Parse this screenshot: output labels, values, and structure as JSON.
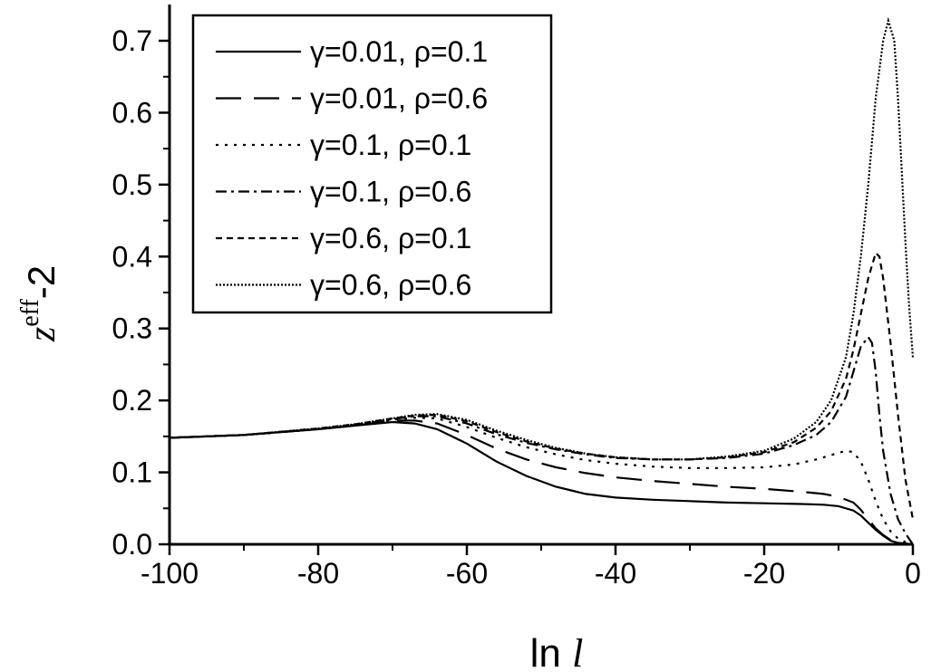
{
  "chart_data": {
    "type": "line",
    "xlabel": "ln l",
    "ylabel": "z^eff-2",
    "xlim": [
      -100,
      0
    ],
    "ylim": [
      0,
      0.7
    ],
    "x_ticks": [
      -100,
      -80,
      -60,
      -40,
      -20,
      0
    ],
    "y_ticks": [
      0.0,
      0.1,
      0.2,
      0.3,
      0.4,
      0.5,
      0.6,
      0.7
    ],
    "x_tick_labels": [
      "-100",
      "-80",
      "-60",
      "-40",
      "-20",
      "0"
    ],
    "y_tick_labels": [
      "0.0",
      "0.1",
      "0.2",
      "0.3",
      "0.4",
      "0.5",
      "0.6",
      "0.7"
    ],
    "grid": false,
    "legend_position": "top-left",
    "series": [
      {
        "name": "γ=0.01, ρ=0.1",
        "style": "solid",
        "points": [
          [
            -100,
            0.148
          ],
          [
            -90,
            0.152
          ],
          [
            -80,
            0.16
          ],
          [
            -75,
            0.165
          ],
          [
            -70,
            0.17
          ],
          [
            -67,
            0.168
          ],
          [
            -64,
            0.16
          ],
          [
            -60,
            0.14
          ],
          [
            -56,
            0.115
          ],
          [
            -52,
            0.095
          ],
          [
            -48,
            0.08
          ],
          [
            -44,
            0.07
          ],
          [
            -40,
            0.065
          ],
          [
            -35,
            0.062
          ],
          [
            -30,
            0.06
          ],
          [
            -25,
            0.058
          ],
          [
            -20,
            0.057
          ],
          [
            -15,
            0.056
          ],
          [
            -12,
            0.055
          ],
          [
            -10,
            0.053
          ],
          [
            -8,
            0.047
          ],
          [
            -7,
            0.04
          ],
          [
            -6,
            0.03
          ],
          [
            -5,
            0.02
          ],
          [
            -4,
            0.012
          ],
          [
            -3,
            0.005
          ],
          [
            -2,
            0.002
          ],
          [
            -1,
            0.001
          ],
          [
            0,
            0.0
          ]
        ]
      },
      {
        "name": "γ=0.01, ρ=0.6",
        "style": "long-dash",
        "points": [
          [
            -100,
            0.148
          ],
          [
            -90,
            0.152
          ],
          [
            -80,
            0.16
          ],
          [
            -75,
            0.165
          ],
          [
            -70,
            0.172
          ],
          [
            -67,
            0.172
          ],
          [
            -64,
            0.168
          ],
          [
            -60,
            0.152
          ],
          [
            -56,
            0.133
          ],
          [
            -52,
            0.118
          ],
          [
            -48,
            0.107
          ],
          [
            -44,
            0.099
          ],
          [
            -40,
            0.093
          ],
          [
            -35,
            0.088
          ],
          [
            -30,
            0.084
          ],
          [
            -25,
            0.08
          ],
          [
            -20,
            0.077
          ],
          [
            -15,
            0.073
          ],
          [
            -12,
            0.07
          ],
          [
            -10,
            0.066
          ],
          [
            -8,
            0.058
          ],
          [
            -7,
            0.048
          ],
          [
            -6,
            0.035
          ],
          [
            -5,
            0.022
          ],
          [
            -4,
            0.013
          ],
          [
            -3,
            0.006
          ],
          [
            -2,
            0.003
          ],
          [
            -1,
            0.001
          ],
          [
            0,
            0.0
          ]
        ]
      },
      {
        "name": "γ=0.1, ρ=0.1",
        "style": "dotted",
        "points": [
          [
            -100,
            0.148
          ],
          [
            -90,
            0.152
          ],
          [
            -80,
            0.16
          ],
          [
            -75,
            0.166
          ],
          [
            -70,
            0.173
          ],
          [
            -67,
            0.176
          ],
          [
            -64,
            0.175
          ],
          [
            -60,
            0.163
          ],
          [
            -56,
            0.148
          ],
          [
            -52,
            0.135
          ],
          [
            -48,
            0.125
          ],
          [
            -44,
            0.117
          ],
          [
            -40,
            0.112
          ],
          [
            -35,
            0.108
          ],
          [
            -30,
            0.106
          ],
          [
            -25,
            0.106
          ],
          [
            -20,
            0.107
          ],
          [
            -16,
            0.111
          ],
          [
            -13,
            0.118
          ],
          [
            -11,
            0.124
          ],
          [
            -9,
            0.13
          ],
          [
            -8,
            0.128
          ],
          [
            -7,
            0.115
          ],
          [
            -6,
            0.09
          ],
          [
            -5,
            0.06
          ],
          [
            -4,
            0.035
          ],
          [
            -3,
            0.018
          ],
          [
            -2,
            0.008
          ],
          [
            -1,
            0.003
          ],
          [
            0,
            0.001
          ]
        ]
      },
      {
        "name": "γ=0.1, ρ=0.6",
        "style": "dash-dot",
        "points": [
          [
            -100,
            0.148
          ],
          [
            -90,
            0.152
          ],
          [
            -80,
            0.16
          ],
          [
            -75,
            0.166
          ],
          [
            -70,
            0.174
          ],
          [
            -67,
            0.178
          ],
          [
            -64,
            0.178
          ],
          [
            -60,
            0.168
          ],
          [
            -56,
            0.153
          ],
          [
            -52,
            0.141
          ],
          [
            -48,
            0.132
          ],
          [
            -44,
            0.125
          ],
          [
            -40,
            0.12
          ],
          [
            -35,
            0.118
          ],
          [
            -30,
            0.118
          ],
          [
            -25,
            0.12
          ],
          [
            -20,
            0.126
          ],
          [
            -16,
            0.138
          ],
          [
            -13,
            0.152
          ],
          [
            -11,
            0.17
          ],
          [
            -9,
            0.205
          ],
          [
            -8,
            0.24
          ],
          [
            -7,
            0.275
          ],
          [
            -6,
            0.288
          ],
          [
            -5.5,
            0.28
          ],
          [
            -5,
            0.24
          ],
          [
            -4.5,
            0.18
          ],
          [
            -4,
            0.13
          ],
          [
            -3,
            0.07
          ],
          [
            -2,
            0.035
          ],
          [
            -1,
            0.015
          ],
          [
            0,
            0.0
          ]
        ]
      },
      {
        "name": "γ=0.6, ρ=0.1",
        "style": "short-dash",
        "points": [
          [
            -100,
            0.148
          ],
          [
            -90,
            0.152
          ],
          [
            -80,
            0.161
          ],
          [
            -75,
            0.167
          ],
          [
            -70,
            0.175
          ],
          [
            -67,
            0.179
          ],
          [
            -64,
            0.18
          ],
          [
            -60,
            0.171
          ],
          [
            -56,
            0.156
          ],
          [
            -52,
            0.143
          ],
          [
            -48,
            0.133
          ],
          [
            -44,
            0.126
          ],
          [
            -40,
            0.121
          ],
          [
            -35,
            0.118
          ],
          [
            -30,
            0.118
          ],
          [
            -25,
            0.121
          ],
          [
            -20,
            0.128
          ],
          [
            -16,
            0.142
          ],
          [
            -13,
            0.162
          ],
          [
            -11,
            0.185
          ],
          [
            -9,
            0.23
          ],
          [
            -8,
            0.27
          ],
          [
            -7,
            0.32
          ],
          [
            -6,
            0.37
          ],
          [
            -5,
            0.405
          ],
          [
            -4.5,
            0.4
          ],
          [
            -4,
            0.37
          ],
          [
            -3,
            0.28
          ],
          [
            -2,
            0.18
          ],
          [
            -1,
            0.09
          ],
          [
            0,
            0.035
          ]
        ]
      },
      {
        "name": "γ=0.6, ρ=0.6",
        "style": "fine-dot",
        "points": [
          [
            -100,
            0.148
          ],
          [
            -90,
            0.152
          ],
          [
            -80,
            0.161
          ],
          [
            -75,
            0.167
          ],
          [
            -70,
            0.175
          ],
          [
            -67,
            0.18
          ],
          [
            -64,
            0.181
          ],
          [
            -60,
            0.173
          ],
          [
            -56,
            0.158
          ],
          [
            -52,
            0.145
          ],
          [
            -48,
            0.134
          ],
          [
            -44,
            0.126
          ],
          [
            -40,
            0.121
          ],
          [
            -35,
            0.118
          ],
          [
            -30,
            0.118
          ],
          [
            -25,
            0.122
          ],
          [
            -20,
            0.13
          ],
          [
            -16,
            0.147
          ],
          [
            -13,
            0.17
          ],
          [
            -11,
            0.2
          ],
          [
            -9,
            0.26
          ],
          [
            -8,
            0.32
          ],
          [
            -7,
            0.4
          ],
          [
            -6,
            0.5
          ],
          [
            -5,
            0.62
          ],
          [
            -4,
            0.7
          ],
          [
            -3.3,
            0.728
          ],
          [
            -2.5,
            0.7
          ],
          [
            -2,
            0.62
          ],
          [
            -1.5,
            0.52
          ],
          [
            -1,
            0.42
          ],
          [
            -0.5,
            0.33
          ],
          [
            0,
            0.26
          ]
        ]
      }
    ]
  }
}
